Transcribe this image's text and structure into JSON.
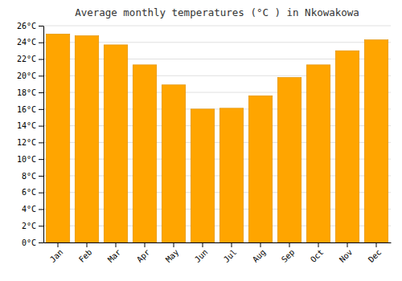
{
  "chart_data": {
    "type": "bar",
    "title": "Average monthly temperatures (°C ) in Nkowakowa",
    "categories": [
      "Jan",
      "Feb",
      "Mar",
      "Apr",
      "May",
      "Jun",
      "Jul",
      "Aug",
      "Sep",
      "Oct",
      "Nov",
      "Dec"
    ],
    "values": [
      25.0,
      24.8,
      23.7,
      21.3,
      18.9,
      16.0,
      16.1,
      17.6,
      19.8,
      21.3,
      23.0,
      24.3
    ],
    "color": "#FFA500",
    "ylim": [
      0,
      26
    ],
    "yticks": [
      {
        "value": 0,
        "label": "0°C"
      },
      {
        "value": 2,
        "label": "2°C"
      },
      {
        "value": 4,
        "label": "4°C"
      },
      {
        "value": 6,
        "label": "6°C"
      },
      {
        "value": 8,
        "label": "8°C"
      },
      {
        "value": 10,
        "label": "10°C"
      },
      {
        "value": 12,
        "label": "12°C"
      },
      {
        "value": 14,
        "label": "14°C"
      },
      {
        "value": 16,
        "label": "16°C"
      },
      {
        "value": 18,
        "label": "18°C"
      },
      {
        "value": 20,
        "label": "20°C"
      },
      {
        "value": 22,
        "label": "22°C"
      },
      {
        "value": 24,
        "label": "24°C"
      },
      {
        "value": 26,
        "label": "26°C"
      }
    ],
    "grid": true
  }
}
